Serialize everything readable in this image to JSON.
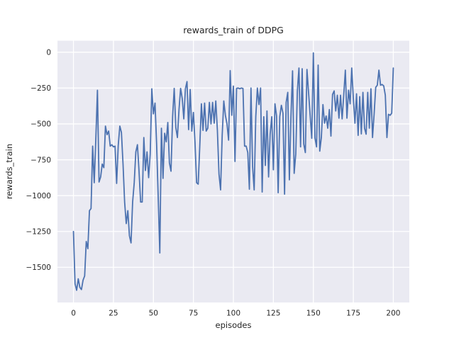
{
  "chart_data": {
    "type": "line",
    "title": "rewards_train of DDPG",
    "xlabel": "episodes",
    "ylabel": "rewards_train",
    "x_ticks": [
      0,
      25,
      50,
      75,
      100,
      125,
      150,
      175,
      200
    ],
    "y_ticks": [
      0,
      -250,
      -500,
      -750,
      -1000,
      -1250,
      -1500
    ],
    "xlim": [
      -10,
      210
    ],
    "ylim": [
      -1745,
      80
    ],
    "grid": true,
    "legend": false,
    "style": "seaborn-darkgrid",
    "colors": {
      "line": "#4c72b0",
      "plot_background": "#eaeaf2",
      "grid": "#ffffff",
      "text": "#262626",
      "figure_background": "#ffffff"
    },
    "x_start": 0,
    "x_step": 1,
    "series": [
      {
        "name": "rewards_train",
        "values": [
          -1250,
          -1615,
          -1660,
          -1580,
          -1640,
          -1655,
          -1590,
          -1560,
          -1320,
          -1370,
          -1105,
          -1090,
          -655,
          -910,
          -600,
          -265,
          -905,
          -870,
          -780,
          -805,
          -515,
          -575,
          -550,
          -655,
          -645,
          -660,
          -655,
          -915,
          -650,
          -515,
          -560,
          -780,
          -1045,
          -1195,
          -1105,
          -1280,
          -1330,
          -1045,
          -910,
          -695,
          -645,
          -830,
          -1045,
          -1045,
          -595,
          -825,
          -695,
          -875,
          -710,
          -255,
          -430,
          -355,
          -640,
          -1015,
          -1400,
          -530,
          -880,
          -565,
          -625,
          -490,
          -772,
          -830,
          -450,
          -252,
          -525,
          -595,
          -400,
          -252,
          -322,
          -465,
          -255,
          -205,
          -540,
          -260,
          -550,
          -420,
          -630,
          -910,
          -920,
          -650,
          -360,
          -545,
          -355,
          -550,
          -530,
          -350,
          -500,
          -350,
          -495,
          -340,
          -545,
          -850,
          -960,
          -580,
          -340,
          -440,
          -500,
          -613,
          -128,
          -440,
          -236,
          -762,
          -252,
          -250,
          -255,
          -250,
          -253,
          -655,
          -655,
          -700,
          -955,
          -250,
          -795,
          -960,
          -450,
          -250,
          -365,
          -250,
          -975,
          -450,
          -790,
          -410,
          -870,
          -570,
          -450,
          -820,
          -360,
          -445,
          -980,
          -450,
          -370,
          -425,
          -990,
          -350,
          -280,
          -890,
          -450,
          -130,
          -845,
          -710,
          -270,
          -110,
          -660,
          -115,
          -640,
          -700,
          -120,
          -280,
          -440,
          -600,
          -5,
          -597,
          -660,
          -90,
          -690,
          -595,
          -365,
          -495,
          -445,
          -530,
          -400,
          -585,
          -295,
          -270,
          -410,
          -300,
          -460,
          -300,
          -465,
          -300,
          -125,
          -460,
          -265,
          -360,
          -110,
          -320,
          -495,
          -290,
          -580,
          -310,
          -570,
          -280,
          -530,
          -572,
          -280,
          -530,
          -255,
          -595,
          -430,
          -245,
          -230,
          -125,
          -230,
          -225,
          -235,
          -300,
          -595,
          -433,
          -440,
          -425,
          -110
        ]
      }
    ]
  }
}
